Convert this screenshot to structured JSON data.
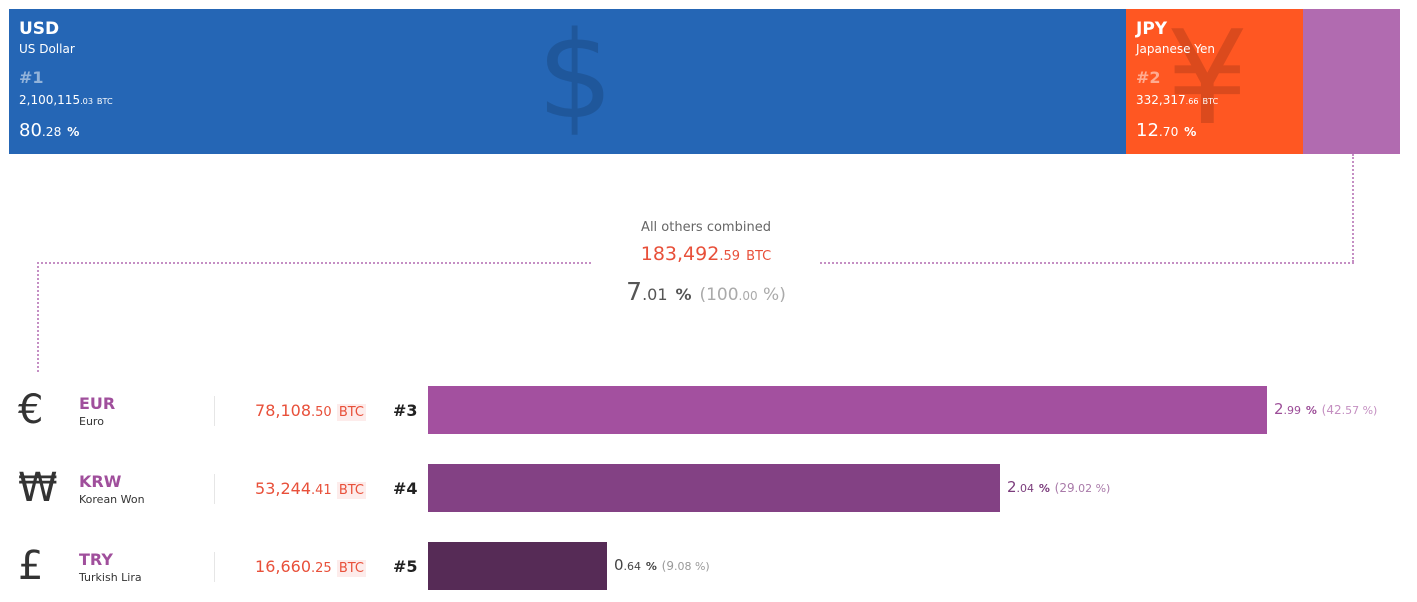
{
  "chart_data": {
    "type": "bar",
    "title": "",
    "top_segments": [
      {
        "code": "USD",
        "name": "US Dollar",
        "rank": "#1",
        "btc_int": "2,100,115",
        "btc_dec": ".03",
        "unit": "BTC",
        "pct_int": "80",
        "pct_dec": ".28",
        "pct_sym": "%",
        "share": 80.28,
        "color": "#2566b5",
        "symbol": "$"
      },
      {
        "code": "JPY",
        "name": "Japanese Yen",
        "rank": "#2",
        "btc_int": "332,317",
        "btc_dec": ".66",
        "unit": "BTC",
        "pct_int": "12",
        "pct_dec": ".70",
        "pct_sym": "%",
        "share": 12.7,
        "color": "#ff5722",
        "symbol": "¥"
      },
      {
        "code": "",
        "share": 7.01,
        "color": "#b16bb0"
      }
    ],
    "others": {
      "label": "All others combined",
      "btc_int": "183,492",
      "btc_dec": ".59",
      "unit": "BTC",
      "pct_int": "7",
      "pct_dec": ".01",
      "pct_sym": "%",
      "total_open": "(100",
      "total_dec": ".00",
      "total_close": " %)"
    },
    "rows": [
      {
        "symbol": "€",
        "code": "EUR",
        "name": "Euro",
        "btc_int": "78,108",
        "btc_dec": ".50",
        "unit": "BTC",
        "rank": "#3",
        "pct_int": "2",
        "pct_dec": ".99",
        "pct_sym": "%",
        "rel_open": "(42",
        "rel_dec": ".57",
        "rel_close": " %)",
        "share": 2.99,
        "relative": 42.57,
        "bar_color": "#a3509f",
        "text_color": "#9c4d98",
        "rel_color": "#c48fc1"
      },
      {
        "symbol": "₩",
        "code": "KRW",
        "name": "Korean Won",
        "btc_int": "53,244",
        "btc_dec": ".41",
        "unit": "BTC",
        "rank": "#4",
        "pct_int": "2",
        "pct_dec": ".04",
        "pct_sym": "%",
        "rel_open": "(29",
        "rel_dec": ".02",
        "rel_close": " %)",
        "share": 2.04,
        "relative": 29.02,
        "bar_color": "#834184",
        "text_color": "#7b3c7c",
        "rel_color": "#a97aa9"
      },
      {
        "symbol": "£",
        "code": "TRY",
        "name": "Turkish Lira",
        "btc_int": "16,660",
        "btc_dec": ".25",
        "unit": "BTC",
        "rank": "#5",
        "pct_int": "0",
        "pct_dec": ".64",
        "pct_sym": "%",
        "rel_open": "(9",
        "rel_dec": ".08",
        "rel_close": " %)",
        "share": 0.64,
        "relative": 9.08,
        "bar_color": "#562b56",
        "text_color": "#444",
        "rel_color": "#999"
      }
    ]
  }
}
